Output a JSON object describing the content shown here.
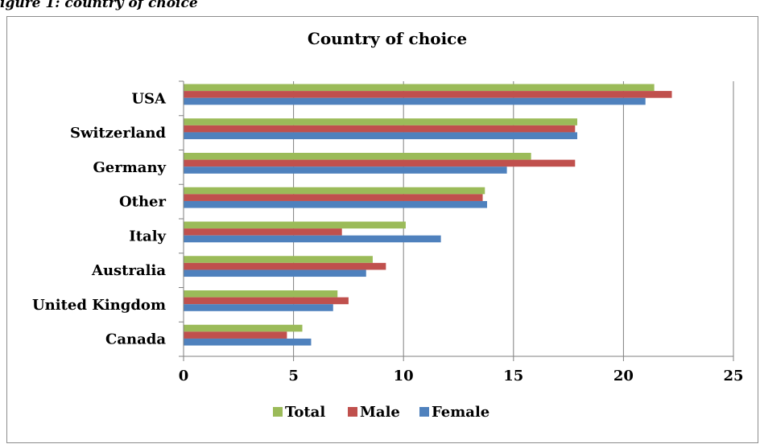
{
  "caption": "igure 1: country of choice",
  "chart_data": {
    "type": "bar",
    "orientation": "horizontal",
    "title": "Country of choice",
    "xlabel": "",
    "ylabel": "",
    "categories": [
      "USA",
      "Switzerland",
      "Germany",
      "Other",
      "Italy",
      "Australia",
      "United Kingdom",
      "Canada"
    ],
    "series": [
      {
        "name": "Total",
        "color": "#9BBB59",
        "values": [
          21.4,
          17.9,
          15.8,
          13.7,
          10.1,
          8.6,
          7.0,
          5.4
        ]
      },
      {
        "name": "Male",
        "color": "#C0504D",
        "values": [
          22.2,
          17.8,
          17.8,
          13.6,
          7.2,
          9.2,
          7.5,
          4.7
        ]
      },
      {
        "name": "Female",
        "color": "#4F81BD",
        "values": [
          21.0,
          17.9,
          14.7,
          13.8,
          11.7,
          8.3,
          6.8,
          5.8
        ]
      }
    ],
    "xlim": [
      0,
      25
    ],
    "xticks": [
      0,
      5,
      10,
      15,
      20,
      25
    ],
    "grid": "vertical",
    "legend": "bottom"
  }
}
